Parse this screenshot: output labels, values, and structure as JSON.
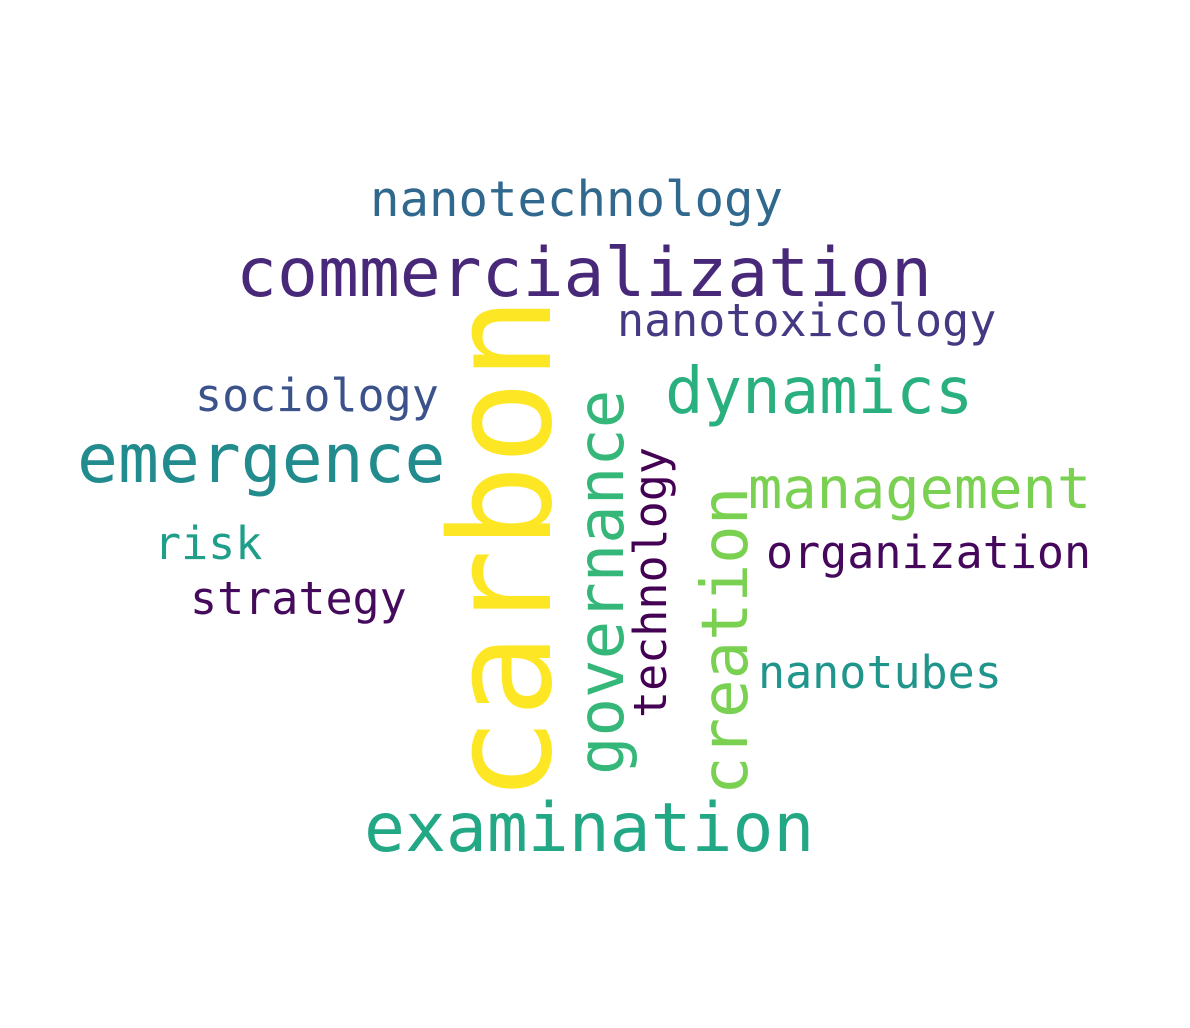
{
  "words": {
    "carbon": {
      "text": "carbon",
      "color": "#fde725",
      "orientation": "vertical"
    },
    "commercialization": {
      "text": "commercialization",
      "color": "#482878",
      "orientation": "horizontal"
    },
    "examination": {
      "text": "examination",
      "color": "#22a884",
      "orientation": "horizontal"
    },
    "emergence": {
      "text": "emergence",
      "color": "#228b8d",
      "orientation": "horizontal"
    },
    "dynamics": {
      "text": "dynamics",
      "color": "#2ab07f",
      "orientation": "horizontal"
    },
    "governance": {
      "text": "governance",
      "color": "#35b779",
      "orientation": "vertical"
    },
    "creation": {
      "text": "creation",
      "color": "#7ad151",
      "orientation": "vertical"
    },
    "management": {
      "text": "management",
      "color": "#7ad151",
      "orientation": "horizontal"
    },
    "nanotechnology": {
      "text": "nanotechnology",
      "color": "#31688e",
      "orientation": "horizontal"
    },
    "nanotoxicology": {
      "text": "nanotoxicology",
      "color": "#443983",
      "orientation": "horizontal"
    },
    "sociology": {
      "text": "sociology",
      "color": "#3b528b",
      "orientation": "horizontal"
    },
    "technology": {
      "text": "technology",
      "color": "#440154",
      "orientation": "vertical"
    },
    "organization": {
      "text": "organization",
      "color": "#46085c",
      "orientation": "horizontal"
    },
    "risk": {
      "text": "risk",
      "color": "#1f9e89",
      "orientation": "horizontal"
    },
    "strategy": {
      "text": "strategy",
      "color": "#450a5c",
      "orientation": "horizontal"
    },
    "nanotubes": {
      "text": "nanotubes",
      "color": "#1f958b",
      "orientation": "horizontal"
    }
  }
}
